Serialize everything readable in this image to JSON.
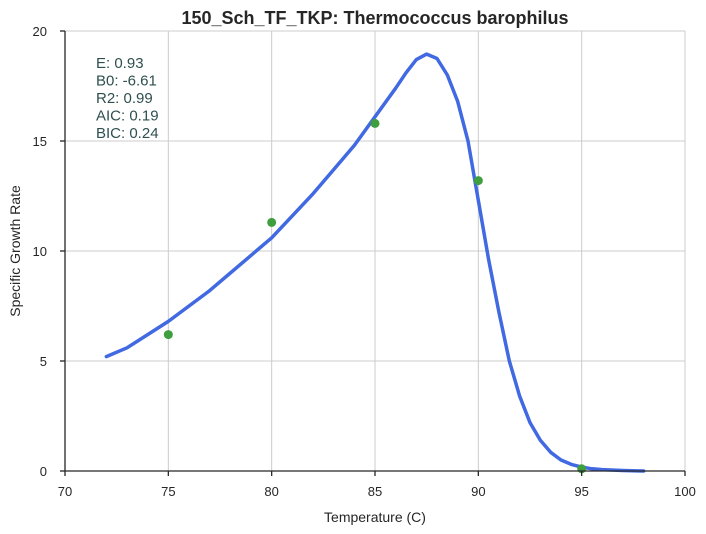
{
  "chart_data": {
    "type": "line",
    "title": "150_Sch_TF_TKP: Thermococcus barophilus",
    "xlabel": "Temperature (C)",
    "ylabel": "Specific Growth Rate",
    "xlim": [
      70,
      100
    ],
    "ylim": [
      0,
      20
    ],
    "xticks": [
      70,
      75,
      80,
      85,
      90,
      95,
      100
    ],
    "yticks": [
      0,
      5,
      10,
      15,
      20
    ],
    "grid": true,
    "colors": {
      "fit": "#4169e1",
      "points": "#3f9f3f",
      "stats": "#2f4f4f"
    },
    "series": [
      {
        "kind": "line",
        "x": [
          72,
          73,
          74,
          75,
          76,
          77,
          78,
          79,
          80,
          81,
          82,
          83,
          84,
          85,
          86,
          86.5,
          87,
          87.5,
          88,
          88.5,
          89,
          89.5,
          90,
          90.5,
          91,
          91.5,
          92,
          92.5,
          93,
          93.5,
          94,
          94.5,
          95,
          95.5,
          96,
          97,
          98
        ],
        "y": [
          5.2,
          5.6,
          6.2,
          6.8,
          7.5,
          8.2,
          9.0,
          9.8,
          10.6,
          11.6,
          12.6,
          13.7,
          14.8,
          16.1,
          17.4,
          18.1,
          18.7,
          18.95,
          18.75,
          18.0,
          16.8,
          15.0,
          12.3,
          9.6,
          7.2,
          5.0,
          3.4,
          2.2,
          1.4,
          0.85,
          0.5,
          0.3,
          0.18,
          0.1,
          0.06,
          0.02,
          0.0
        ]
      },
      {
        "kind": "scatter",
        "x": [
          75,
          80,
          85,
          90,
          95
        ],
        "y": [
          6.2,
          11.3,
          15.8,
          13.2,
          0.1
        ]
      }
    ],
    "annotation_lines": [
      "E:  0.93",
      "B0:  -6.61",
      "R2:  0.99",
      "AIC: 0.19",
      "BIC: 0.24"
    ]
  }
}
